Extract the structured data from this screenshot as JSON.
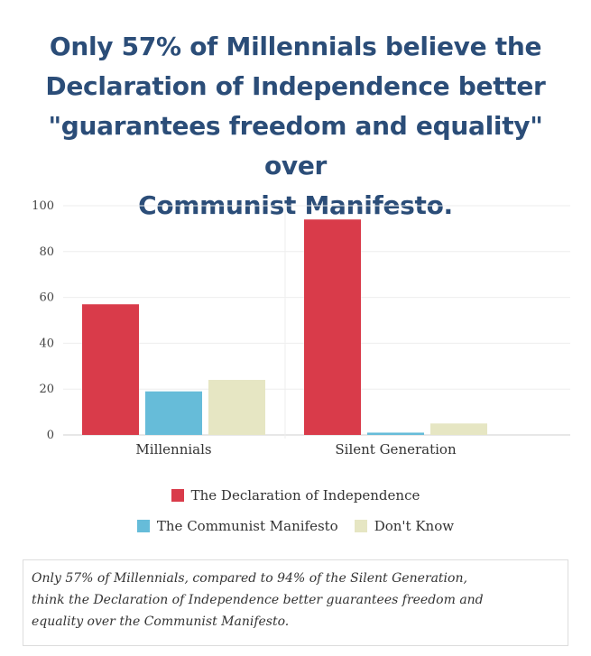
{
  "title_lines": [
    "Only 57% of Millennials believe the",
    "Declaration of Independence better",
    "\"guarantees freedom and equality\" over",
    "Communist Manifesto."
  ],
  "chart_data": {
    "type": "bar",
    "categories": [
      "Millennials",
      "Silent Generation"
    ],
    "series": [
      {
        "name": "The Declaration of Independence",
        "color": "#d93b4a",
        "values": [
          57,
          94
        ]
      },
      {
        "name": "The Communist Manifesto",
        "color": "#66bcd9",
        "values": [
          19,
          1
        ]
      },
      {
        "name": "Don't Know",
        "color": "#e6e6c3",
        "values": [
          24,
          5
        ]
      }
    ],
    "yticks": [
      "0",
      "20",
      "40",
      "60",
      "80",
      "100"
    ],
    "ylim": [
      0,
      100
    ],
    "grid": true,
    "legend_position": "bottom"
  },
  "caption_lines": [
    "Only 57% of Millennials, compared to 94% of the Silent Generation,",
    "think the Declaration of Independence better guarantees freedom and",
    "equality over the Communist Manifesto."
  ]
}
